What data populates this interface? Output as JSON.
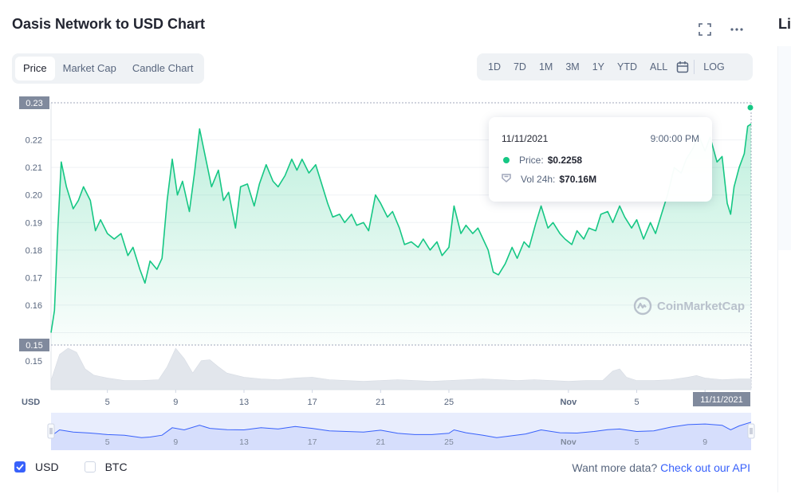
{
  "header": {
    "title": "Oasis Network to USD Chart",
    "corner_title": "Li"
  },
  "tabs": [
    {
      "label": "Price",
      "active": true
    },
    {
      "label": "Market Cap",
      "active": false
    },
    {
      "label": "Candle Chart",
      "active": false
    }
  ],
  "ranges": [
    "1D",
    "7D",
    "1M",
    "3M",
    "1Y",
    "YTD",
    "ALL"
  ],
  "log_label": "LOG",
  "icons": {
    "fullscreen": "expand-icon",
    "more": "more-horizontal-icon",
    "calendar": "calendar-icon"
  },
  "tooltip": {
    "date": "11/11/2021",
    "time": "9:00:00 PM",
    "price_label": "Price:",
    "price_value": "$0.2258",
    "vol_label": "Vol 24h:",
    "vol_value": "$70.16M"
  },
  "watermark": "CoinMarketCap",
  "legend": {
    "usd": "USD",
    "btc": "BTC",
    "usd_checked": true,
    "btc_checked": false
  },
  "api": {
    "prompt": "Want more data?",
    "link": "Check out our API"
  },
  "colors": {
    "line": "#16c784",
    "accent": "#3861fb",
    "nav_fill": "#e8edfd",
    "volume": "#e2e6ec"
  },
  "chart_data": {
    "type": "line",
    "currency_label": "USD",
    "y_ticks": [
      0.15,
      0.16,
      0.17,
      0.18,
      0.19,
      0.2,
      0.21,
      0.22
    ],
    "y_tick_labels": [
      "0.16",
      "0.17",
      "0.18",
      "0.19",
      "0.20",
      "0.21",
      "0.22"
    ],
    "ylim": [
      0.1455,
      0.2335
    ],
    "max_label": "0.23",
    "min_label": "0.15",
    "volume_axis_label": "0.15",
    "x_ticks": [
      {
        "d": 5,
        "label": "5"
      },
      {
        "d": 9,
        "label": "9"
      },
      {
        "d": 13,
        "label": "13"
      },
      {
        "d": 17,
        "label": "17"
      },
      {
        "d": 21,
        "label": "21"
      },
      {
        "d": 25,
        "label": "25"
      },
      {
        "d": 32,
        "label": "Nov"
      },
      {
        "d": 36,
        "label": "5"
      },
      {
        "d": 40,
        "label": "9"
      }
    ],
    "x_range": [
      1.7,
      42.7
    ],
    "current_x_label": "11/11/2021",
    "price": [
      [
        1.7,
        0.15
      ],
      [
        1.9,
        0.158
      ],
      [
        2.1,
        0.188
      ],
      [
        2.3,
        0.212
      ],
      [
        2.6,
        0.203
      ],
      [
        3.0,
        0.195
      ],
      [
        3.3,
        0.198
      ],
      [
        3.6,
        0.203
      ],
      [
        4.0,
        0.198
      ],
      [
        4.3,
        0.187
      ],
      [
        4.6,
        0.191
      ],
      [
        5.0,
        0.186
      ],
      [
        5.4,
        0.184
      ],
      [
        5.8,
        0.186
      ],
      [
        6.2,
        0.178
      ],
      [
        6.5,
        0.181
      ],
      [
        6.9,
        0.173
      ],
      [
        7.2,
        0.168
      ],
      [
        7.5,
        0.176
      ],
      [
        7.9,
        0.173
      ],
      [
        8.2,
        0.177
      ],
      [
        8.5,
        0.198
      ],
      [
        8.8,
        0.213
      ],
      [
        9.1,
        0.2
      ],
      [
        9.4,
        0.205
      ],
      [
        9.8,
        0.194
      ],
      [
        10.1,
        0.208
      ],
      [
        10.4,
        0.224
      ],
      [
        10.8,
        0.212
      ],
      [
        11.1,
        0.203
      ],
      [
        11.5,
        0.209
      ],
      [
        11.8,
        0.198
      ],
      [
        12.1,
        0.201
      ],
      [
        12.5,
        0.188
      ],
      [
        12.8,
        0.203
      ],
      [
        13.2,
        0.204
      ],
      [
        13.6,
        0.196
      ],
      [
        13.9,
        0.204
      ],
      [
        14.3,
        0.211
      ],
      [
        14.7,
        0.205
      ],
      [
        15.0,
        0.203
      ],
      [
        15.4,
        0.207
      ],
      [
        15.8,
        0.213
      ],
      [
        16.1,
        0.209
      ],
      [
        16.4,
        0.213
      ],
      [
        16.8,
        0.208
      ],
      [
        17.2,
        0.211
      ],
      [
        17.5,
        0.205
      ],
      [
        17.9,
        0.197
      ],
      [
        18.2,
        0.192
      ],
      [
        18.6,
        0.193
      ],
      [
        18.9,
        0.19
      ],
      [
        19.3,
        0.193
      ],
      [
        19.6,
        0.189
      ],
      [
        20.0,
        0.19
      ],
      [
        20.3,
        0.187
      ],
      [
        20.7,
        0.2
      ],
      [
        21.0,
        0.197
      ],
      [
        21.4,
        0.192
      ],
      [
        21.7,
        0.194
      ],
      [
        22.1,
        0.188
      ],
      [
        22.4,
        0.182
      ],
      [
        22.8,
        0.183
      ],
      [
        23.2,
        0.181
      ],
      [
        23.5,
        0.184
      ],
      [
        23.9,
        0.18
      ],
      [
        24.3,
        0.183
      ],
      [
        24.6,
        0.178
      ],
      [
        25.0,
        0.181
      ],
      [
        25.3,
        0.196
      ],
      [
        25.7,
        0.186
      ],
      [
        26.0,
        0.189
      ],
      [
        26.4,
        0.186
      ],
      [
        26.7,
        0.188
      ],
      [
        27.0,
        0.184
      ],
      [
        27.3,
        0.18
      ],
      [
        27.6,
        0.172
      ],
      [
        27.9,
        0.171
      ],
      [
        28.3,
        0.175
      ],
      [
        28.7,
        0.181
      ],
      [
        29.0,
        0.177
      ],
      [
        29.4,
        0.183
      ],
      [
        29.7,
        0.181
      ],
      [
        30.1,
        0.19
      ],
      [
        30.4,
        0.196
      ],
      [
        30.8,
        0.188
      ],
      [
        31.1,
        0.19
      ],
      [
        31.5,
        0.186
      ],
      [
        31.8,
        0.184
      ],
      [
        32.2,
        0.182
      ],
      [
        32.5,
        0.187
      ],
      [
        32.9,
        0.184
      ],
      [
        33.2,
        0.188
      ],
      [
        33.6,
        0.187
      ],
      [
        33.9,
        0.193
      ],
      [
        34.3,
        0.194
      ],
      [
        34.6,
        0.19
      ],
      [
        35.0,
        0.196
      ],
      [
        35.3,
        0.192
      ],
      [
        35.7,
        0.188
      ],
      [
        36.0,
        0.191
      ],
      [
        36.4,
        0.184
      ],
      [
        36.8,
        0.19
      ],
      [
        37.1,
        0.186
      ],
      [
        37.5,
        0.194
      ],
      [
        37.8,
        0.2
      ],
      [
        38.2,
        0.21
      ],
      [
        38.6,
        0.208
      ],
      [
        38.9,
        0.213
      ],
      [
        39.3,
        0.217
      ],
      [
        39.6,
        0.222
      ],
      [
        40.0,
        0.216
      ],
      [
        40.3,
        0.221
      ],
      [
        40.7,
        0.212
      ],
      [
        41.0,
        0.214
      ],
      [
        41.3,
        0.197
      ],
      [
        41.5,
        0.193
      ],
      [
        41.7,
        0.203
      ],
      [
        42.0,
        0.21
      ],
      [
        42.3,
        0.215
      ],
      [
        42.5,
        0.225
      ],
      [
        42.7,
        0.2258
      ]
    ],
    "volume": [
      [
        1.7,
        0.22
      ],
      [
        2.2,
        0.85
      ],
      [
        2.7,
        1.0
      ],
      [
        3.2,
        0.9
      ],
      [
        3.7,
        0.5
      ],
      [
        4.2,
        0.35
      ],
      [
        5.0,
        0.28
      ],
      [
        6.0,
        0.22
      ],
      [
        7.0,
        0.22
      ],
      [
        8.0,
        0.24
      ],
      [
        8.5,
        0.55
      ],
      [
        9.0,
        1.0
      ],
      [
        9.5,
        0.75
      ],
      [
        10.0,
        0.4
      ],
      [
        10.5,
        0.7
      ],
      [
        11.0,
        0.72
      ],
      [
        11.5,
        0.55
      ],
      [
        12.0,
        0.4
      ],
      [
        13.0,
        0.3
      ],
      [
        14.0,
        0.26
      ],
      [
        15.0,
        0.24
      ],
      [
        16.0,
        0.28
      ],
      [
        17.0,
        0.3
      ],
      [
        18.0,
        0.24
      ],
      [
        19.0,
        0.22
      ],
      [
        20.0,
        0.2
      ],
      [
        21.0,
        0.22
      ],
      [
        22.0,
        0.24
      ],
      [
        23.0,
        0.22
      ],
      [
        24.0,
        0.2
      ],
      [
        25.0,
        0.22
      ],
      [
        26.0,
        0.24
      ],
      [
        27.0,
        0.26
      ],
      [
        28.0,
        0.24
      ],
      [
        29.0,
        0.22
      ],
      [
        30.0,
        0.24
      ],
      [
        31.0,
        0.22
      ],
      [
        32.0,
        0.2
      ],
      [
        33.0,
        0.22
      ],
      [
        34.0,
        0.22
      ],
      [
        34.6,
        0.45
      ],
      [
        35.0,
        0.5
      ],
      [
        35.4,
        0.3
      ],
      [
        36.0,
        0.22
      ],
      [
        37.0,
        0.22
      ],
      [
        38.0,
        0.24
      ],
      [
        39.0,
        0.3
      ],
      [
        39.5,
        0.34
      ],
      [
        40.0,
        0.28
      ],
      [
        41.0,
        0.24
      ],
      [
        42.0,
        0.26
      ],
      [
        42.7,
        0.26
      ]
    ],
    "navigator": [
      [
        1.7,
        0.35
      ],
      [
        2.2,
        0.55
      ],
      [
        3.0,
        0.48
      ],
      [
        4.0,
        0.45
      ],
      [
        5.0,
        0.4
      ],
      [
        6.0,
        0.38
      ],
      [
        7.0,
        0.3
      ],
      [
        7.5,
        0.32
      ],
      [
        8.2,
        0.38
      ],
      [
        8.8,
        0.62
      ],
      [
        9.5,
        0.55
      ],
      [
        10.4,
        0.7
      ],
      [
        11.0,
        0.6
      ],
      [
        12.0,
        0.56
      ],
      [
        13.0,
        0.55
      ],
      [
        14.0,
        0.62
      ],
      [
        15.0,
        0.58
      ],
      [
        16.0,
        0.66
      ],
      [
        17.0,
        0.6
      ],
      [
        18.0,
        0.52
      ],
      [
        19.0,
        0.5
      ],
      [
        20.0,
        0.48
      ],
      [
        21.0,
        0.54
      ],
      [
        22.0,
        0.44
      ],
      [
        23.0,
        0.4
      ],
      [
        24.0,
        0.4
      ],
      [
        25.0,
        0.44
      ],
      [
        25.3,
        0.55
      ],
      [
        26.0,
        0.46
      ],
      [
        27.0,
        0.38
      ],
      [
        27.8,
        0.3
      ],
      [
        28.5,
        0.35
      ],
      [
        29.5,
        0.42
      ],
      [
        30.4,
        0.55
      ],
      [
        31.5,
        0.46
      ],
      [
        32.5,
        0.45
      ],
      [
        33.5,
        0.5
      ],
      [
        34.3,
        0.56
      ],
      [
        35.0,
        0.58
      ],
      [
        36.0,
        0.5
      ],
      [
        37.0,
        0.52
      ],
      [
        38.0,
        0.64
      ],
      [
        39.0,
        0.72
      ],
      [
        40.0,
        0.74
      ],
      [
        41.0,
        0.7
      ],
      [
        41.5,
        0.55
      ],
      [
        42.0,
        0.68
      ],
      [
        42.7,
        0.8
      ]
    ]
  }
}
